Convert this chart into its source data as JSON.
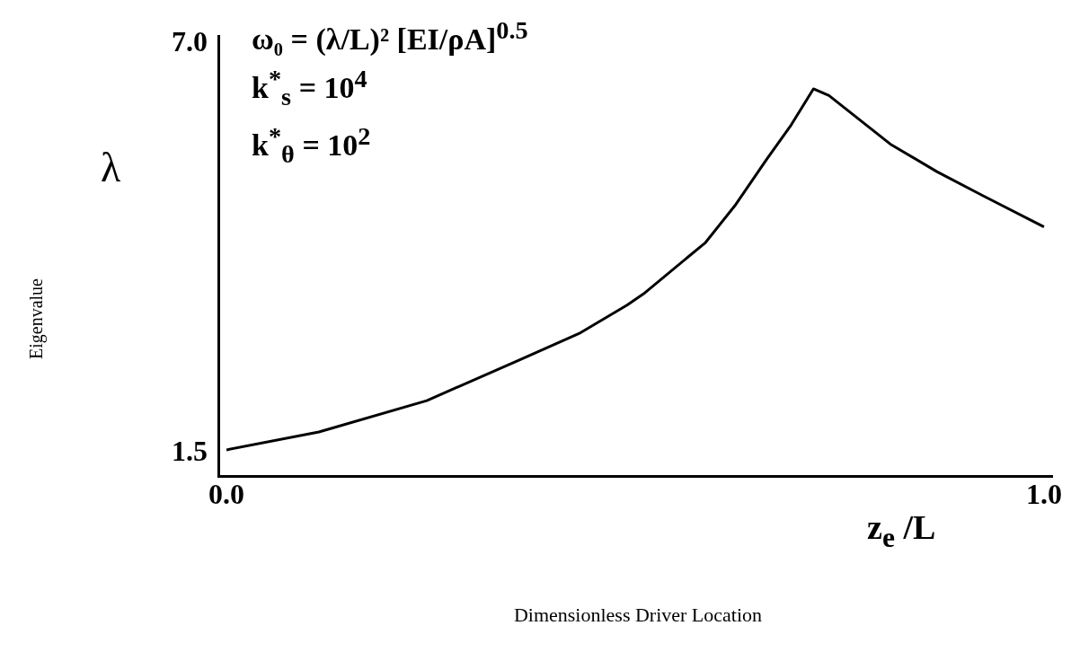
{
  "chart_data": {
    "type": "line",
    "xlabel": "z$_{e}$ /L",
    "ylabel": "λ",
    "annotations": [
      "ω₀ =  (λ/L)² [EI/ρA]$^{0.5}$",
      "k$^{*}$$_{s}$ =  10$^{4}$",
      "k$^{*}$$_{θ}$ =  10$^{2}$",
      "Eigenvalue",
      "Dimensionless Driver Location"
    ],
    "x": [
      0,
      0.113,
      0.245,
      0.357,
      0.433,
      0.49,
      0.51,
      0.586,
      0.623,
      0.661,
      0.691,
      0.718,
      0.737,
      0.812,
      0.869,
      0.925,
      1.0
    ],
    "values": [
      1.55,
      1.79,
      2.21,
      2.75,
      3.12,
      3.49,
      3.64,
      4.33,
      4.84,
      5.45,
      5.91,
      6.39,
      6.3,
      5.65,
      5.28,
      4.96,
      4.54
    ],
    "color": "#000000",
    "xlim": [
      -0.01,
      1.01
    ],
    "ylim": [
      1.2,
      7.1
    ],
    "xticks": [
      {
        "value": 0,
        "label": "0.0"
      },
      {
        "value": 1,
        "label": "1.0"
      }
    ],
    "yticks": [
      {
        "value": 1.5,
        "label": "1.5"
      },
      {
        "value": 7,
        "label": "7.0"
      }
    ],
    "grid": false,
    "legend": false,
    "marker": "none",
    "line_style": "solid"
  }
}
